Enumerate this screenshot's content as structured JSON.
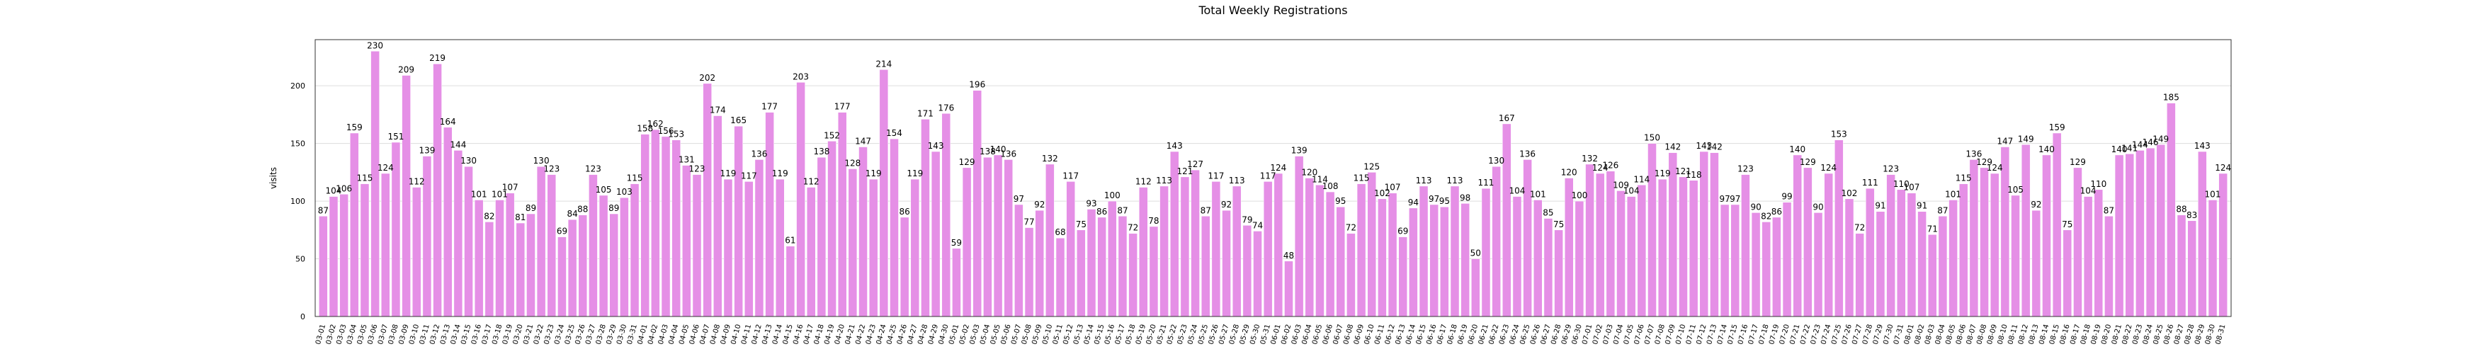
{
  "chart_data": {
    "type": "bar",
    "title": "Total Weekly Registrations",
    "xlabel": "",
    "ylabel": "visits",
    "ylim": [
      0,
      240
    ],
    "yticks": [
      0,
      50,
      100,
      150,
      200
    ],
    "grid": "horizontal",
    "bar_color": "#e58fe6",
    "bar_edge_color": "#ffffff",
    "categories": [
      "03-01",
      "03-02",
      "03-03",
      "03-04",
      "03-05",
      "03-06",
      "03-07",
      "03-08",
      "03-09",
      "03-10",
      "03-11",
      "03-12",
      "03-13",
      "03-14",
      "03-15",
      "03-16",
      "03-17",
      "03-18",
      "03-19",
      "03-20",
      "03-21",
      "03-22",
      "03-23",
      "03-24",
      "03-25",
      "03-26",
      "03-27",
      "03-28",
      "03-29",
      "03-30",
      "03-31",
      "04-01",
      "04-02",
      "04-03",
      "04-04",
      "04-05",
      "04-06",
      "04-07",
      "04-08",
      "04-09",
      "04-10",
      "04-11",
      "04-12",
      "04-13",
      "04-14",
      "04-15",
      "04-16",
      "04-17",
      "04-18",
      "04-19",
      "04-20",
      "04-21",
      "04-22",
      "04-23",
      "04-24",
      "04-25",
      "04-26",
      "04-27",
      "04-28",
      "04-29",
      "04-30",
      "05-01",
      "05-02",
      "05-03",
      "05-04",
      "05-05",
      "05-06",
      "05-07",
      "05-08",
      "05-09",
      "05-10",
      "05-11",
      "05-12",
      "05-13",
      "05-14",
      "05-15",
      "05-16",
      "05-17",
      "05-18",
      "05-19",
      "05-20",
      "05-21",
      "05-22",
      "05-23",
      "05-24",
      "05-25",
      "05-26",
      "05-27",
      "05-28",
      "05-29",
      "05-30",
      "05-31",
      "06-01",
      "06-02",
      "06-03",
      "06-04",
      "06-05",
      "06-06",
      "06-07",
      "06-08",
      "06-09",
      "06-10",
      "06-11",
      "06-12",
      "06-13",
      "06-14",
      "06-15",
      "06-16",
      "06-17",
      "06-18",
      "06-19",
      "06-20",
      "06-21",
      "06-22",
      "06-23",
      "06-24",
      "06-25",
      "06-26",
      "06-27",
      "06-28",
      "06-29",
      "06-30",
      "07-01",
      "07-02",
      "07-03",
      "07-04",
      "07-05",
      "07-06",
      "07-07",
      "07-08",
      "07-09",
      "07-10",
      "07-11",
      "07-12",
      "07-13",
      "07-14",
      "07-15",
      "07-16",
      "07-17",
      "07-18",
      "07-19",
      "07-20",
      "07-21",
      "07-22",
      "07-23",
      "07-24",
      "07-25",
      "07-26",
      "07-27",
      "07-28",
      "07-29",
      "07-30",
      "07-31",
      "08-01",
      "08-02",
      "08-03",
      "08-04",
      "08-05",
      "08-06",
      "08-07",
      "08-08",
      "08-09",
      "08-10",
      "08-11",
      "08-12",
      "08-13",
      "08-14",
      "08-15",
      "08-16",
      "08-17",
      "08-18",
      "08-19",
      "08-20",
      "08-21",
      "08-22",
      "08-23",
      "08-24",
      "08-25",
      "08-26",
      "08-27",
      "08-28",
      "08-29",
      "08-30",
      "08-31"
    ],
    "values": [
      87,
      104,
      106,
      159,
      115,
      230,
      124,
      151,
      209,
      112,
      139,
      219,
      164,
      144,
      130,
      101,
      82,
      101,
      107,
      81,
      89,
      130,
      123,
      69,
      84,
      88,
      123,
      105,
      89,
      103,
      115,
      158,
      162,
      156,
      153,
      131,
      123,
      202,
      174,
      119,
      165,
      117,
      136,
      177,
      119,
      61,
      203,
      112,
      138,
      152,
      177,
      128,
      147,
      119,
      214,
      154,
      86,
      119,
      171,
      143,
      176,
      59,
      129,
      196,
      138,
      140,
      136,
      97,
      77,
      92,
      132,
      68,
      117,
      75,
      93,
      86,
      100,
      87,
      72,
      112,
      78,
      113,
      143,
      121,
      127,
      87,
      117,
      92,
      113,
      79,
      74,
      117,
      124,
      48,
      139,
      120,
      114,
      108,
      95,
      72,
      115,
      125,
      102,
      107,
      69,
      94,
      113,
      97,
      95,
      113,
      98,
      50,
      111,
      130,
      167,
      104,
      136,
      101,
      85,
      75,
      120,
      100,
      132,
      124,
      126,
      109,
      104,
      114,
      150,
      119,
      142,
      121,
      118,
      143,
      142,
      97,
      97,
      123,
      90,
      82,
      86,
      99,
      140,
      129,
      90,
      124,
      153,
      102,
      72,
      111,
      91,
      123,
      110,
      107,
      91,
      71,
      87,
      101,
      115,
      136,
      129,
      124,
      147,
      105,
      149,
      92,
      140,
      159,
      75,
      129,
      104,
      110,
      87,
      140,
      141,
      144,
      146,
      149,
      185,
      88,
      83,
      143,
      101,
      124
    ]
  }
}
